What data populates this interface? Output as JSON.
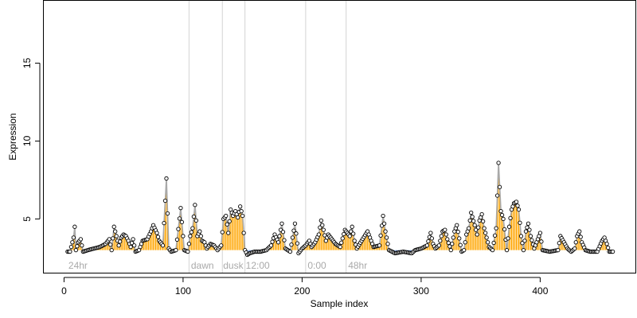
{
  "chart_data": {
    "type": "scatter",
    "xlabel": "Sample index",
    "ylabel": "Expression",
    "xlim": [
      -17,
      480
    ],
    "ylim": [
      1.5,
      19
    ],
    "baseline": 3.0,
    "xticks": [
      0,
      100,
      200,
      300,
      400
    ],
    "yticks": [
      5,
      10,
      15
    ],
    "grid": false,
    "colors": {
      "above": "#ffa500",
      "below": "#6495ed",
      "line": "#a9a9a9",
      "divider": "#d3d3d3",
      "point_edge": "#000000",
      "point_fill": "#ffffff"
    },
    "segments": [
      {
        "label": "24hr",
        "start": 3
      },
      {
        "label": "dawn",
        "start": 106
      },
      {
        "label": "dusk",
        "start": 133
      },
      {
        "label": "12:00",
        "start": 152
      },
      {
        "label": "0:00",
        "start": 204
      },
      {
        "label": "48hr",
        "start": 238
      }
    ],
    "dividers": [
      105,
      133,
      152,
      203,
      237
    ],
    "anchors": [
      [
        3,
        2.9
      ],
      [
        5,
        2.9
      ],
      [
        8,
        3.8
      ],
      [
        9,
        4.5
      ],
      [
        10,
        3.0
      ],
      [
        12,
        3.5
      ],
      [
        14,
        3.7
      ],
      [
        16,
        2.9
      ],
      [
        20,
        3.0
      ],
      [
        25,
        3.1
      ],
      [
        30,
        3.2
      ],
      [
        35,
        3.4
      ],
      [
        38,
        3.7
      ],
      [
        40,
        3.0
      ],
      [
        42,
        4.5
      ],
      [
        44,
        3.9
      ],
      [
        46,
        3.3
      ],
      [
        48,
        3.8
      ],
      [
        50,
        4.0
      ],
      [
        52,
        3.9
      ],
      [
        54,
        3.6
      ],
      [
        56,
        3.2
      ],
      [
        58,
        3.7
      ],
      [
        60,
        2.9
      ],
      [
        63,
        3.0
      ],
      [
        66,
        3.6
      ],
      [
        70,
        3.7
      ],
      [
        73,
        4.2
      ],
      [
        75,
        4.6
      ],
      [
        78,
        4.1
      ],
      [
        80,
        3.6
      ],
      [
        83,
        3.3
      ],
      [
        86,
        7.6
      ],
      [
        88,
        3.1
      ],
      [
        90,
        2.9
      ],
      [
        94,
        3.0
      ],
      [
        98,
        5.7
      ],
      [
        101,
        3.0
      ],
      [
        104,
        2.9
      ],
      [
        106,
        3.9
      ],
      [
        108,
        4.4
      ],
      [
        110,
        5.9
      ],
      [
        112,
        3.9
      ],
      [
        114,
        4.2
      ],
      [
        116,
        3.6
      ],
      [
        118,
        3.5
      ],
      [
        120,
        3.1
      ],
      [
        123,
        3.4
      ],
      [
        126,
        3.3
      ],
      [
        129,
        3.0
      ],
      [
        132,
        3.3
      ],
      [
        134,
        5.0
      ],
      [
        136,
        5.2
      ],
      [
        138,
        4.1
      ],
      [
        140,
        5.6
      ],
      [
        142,
        5.2
      ],
      [
        144,
        5.5
      ],
      [
        146,
        5.1
      ],
      [
        148,
        5.8
      ],
      [
        150,
        5.2
      ],
      [
        152,
        3.0
      ],
      [
        154,
        2.7
      ],
      [
        156,
        2.8
      ],
      [
        160,
        2.9
      ],
      [
        165,
        2.9
      ],
      [
        170,
        3.0
      ],
      [
        174,
        3.3
      ],
      [
        177,
        4.0
      ],
      [
        180,
        3.5
      ],
      [
        183,
        4.7
      ],
      [
        186,
        3.1
      ],
      [
        190,
        2.9
      ],
      [
        194,
        4.7
      ],
      [
        197,
        2.8
      ],
      [
        200,
        3.1
      ],
      [
        203,
        3.3
      ],
      [
        206,
        3.6
      ],
      [
        208,
        3.2
      ],
      [
        211,
        3.5
      ],
      [
        214,
        4.0
      ],
      [
        216,
        4.9
      ],
      [
        218,
        4.3
      ],
      [
        220,
        3.6
      ],
      [
        222,
        4.0
      ],
      [
        225,
        3.7
      ],
      [
        228,
        3.4
      ],
      [
        232,
        3.2
      ],
      [
        236,
        4.3
      ],
      [
        240,
        3.9
      ],
      [
        242,
        4.5
      ],
      [
        244,
        3.6
      ],
      [
        246,
        3.1
      ],
      [
        250,
        3.6
      ],
      [
        255,
        4.2
      ],
      [
        260,
        3.2
      ],
      [
        265,
        3.3
      ],
      [
        268,
        5.2
      ],
      [
        270,
        4.2
      ],
      [
        273,
        3.0
      ],
      [
        278,
        2.8
      ],
      [
        285,
        2.9
      ],
      [
        292,
        2.8
      ],
      [
        295,
        3.0
      ],
      [
        300,
        3.1
      ],
      [
        305,
        3.3
      ],
      [
        308,
        4.1
      ],
      [
        310,
        3.4
      ],
      [
        312,
        3.1
      ],
      [
        315,
        3.3
      ],
      [
        318,
        4.2
      ],
      [
        320,
        4.3
      ],
      [
        322,
        3.7
      ],
      [
        325,
        3.0
      ],
      [
        328,
        4.2
      ],
      [
        330,
        4.6
      ],
      [
        334,
        2.9
      ],
      [
        336,
        3.0
      ],
      [
        338,
        4.0
      ],
      [
        340,
        4.4
      ],
      [
        342,
        5.4
      ],
      [
        345,
        4.6
      ],
      [
        347,
        4.0
      ],
      [
        349,
        4.9
      ],
      [
        351,
        5.3
      ],
      [
        353,
        4.4
      ],
      [
        355,
        3.8
      ],
      [
        357,
        3.2
      ],
      [
        360,
        3.0
      ],
      [
        363,
        4.4
      ],
      [
        365,
        8.6
      ],
      [
        367,
        5.5
      ],
      [
        369,
        5.0
      ],
      [
        372,
        3.0
      ],
      [
        374,
        4.5
      ],
      [
        376,
        5.6
      ],
      [
        378,
        6.0
      ],
      [
        380,
        6.1
      ],
      [
        382,
        5.6
      ],
      [
        384,
        3.9
      ],
      [
        386,
        3.0
      ],
      [
        388,
        4.2
      ],
      [
        390,
        4.7
      ],
      [
        392,
        3.9
      ],
      [
        395,
        3.1
      ],
      [
        400,
        4.1
      ],
      [
        402,
        3.0
      ],
      [
        408,
        2.9
      ],
      [
        415,
        3.0
      ],
      [
        417,
        3.9
      ],
      [
        420,
        3.5
      ],
      [
        423,
        3.1
      ],
      [
        426,
        2.9
      ],
      [
        429,
        3.1
      ],
      [
        431,
        3.9
      ],
      [
        433,
        4.2
      ],
      [
        435,
        3.5
      ],
      [
        438,
        3.0
      ],
      [
        442,
        2.9
      ],
      [
        448,
        2.9
      ],
      [
        452,
        3.6
      ],
      [
        454,
        3.8
      ],
      [
        456,
        3.4
      ],
      [
        458,
        2.9
      ],
      [
        461,
        2.9
      ]
    ]
  }
}
